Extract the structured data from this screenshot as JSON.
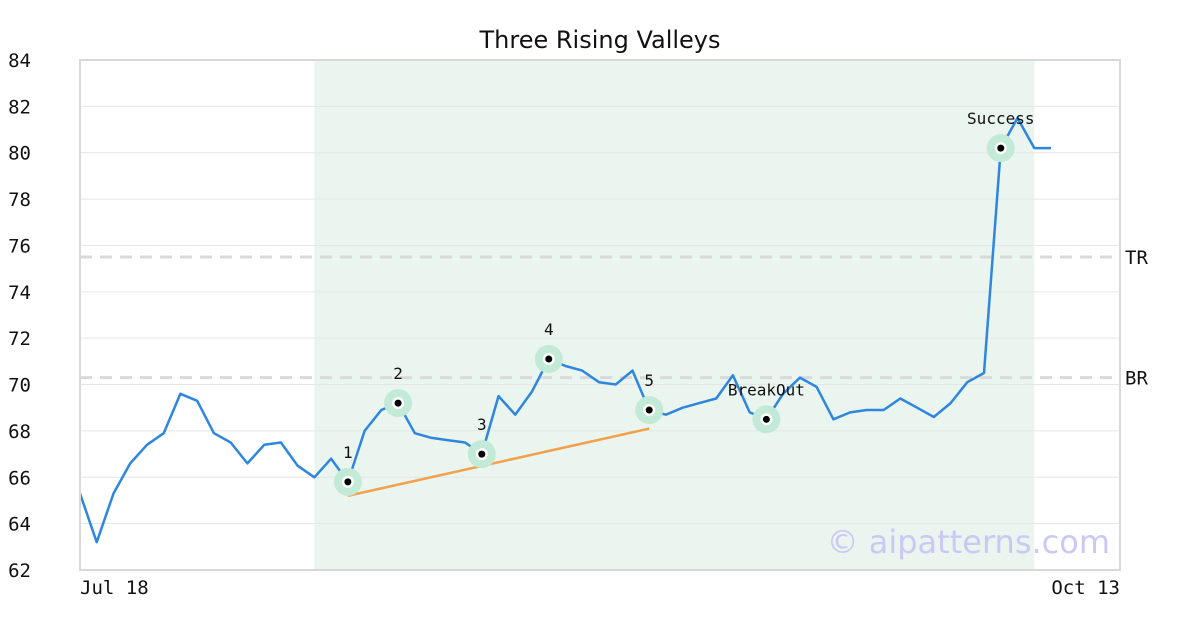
{
  "chart_data": {
    "type": "line",
    "title": "Three Rising Valleys",
    "x_tick_labels": [
      "Jul 18",
      "Oct 13"
    ],
    "y_ticks": [
      62,
      64,
      66,
      68,
      70,
      72,
      74,
      76,
      78,
      80,
      82,
      84
    ],
    "ylim": [
      62,
      84
    ],
    "grid": "horizontal",
    "series": [
      {
        "color": "#2e86de",
        "values": [
          65.3,
          63.2,
          65.3,
          66.6,
          67.4,
          67.9,
          69.6,
          69.3,
          67.9,
          67.5,
          66.6,
          67.4,
          67.5,
          66.5,
          66.0,
          66.8,
          65.8,
          68.0,
          68.9,
          69.2,
          67.9,
          67.7,
          67.6,
          67.5,
          67.0,
          69.5,
          68.7,
          69.7,
          71.1,
          70.8,
          70.6,
          70.1,
          70.0,
          70.6,
          68.9,
          68.7,
          69.0,
          69.2,
          69.4,
          70.4,
          68.8,
          68.5,
          69.6,
          70.3,
          69.9,
          68.5,
          68.8,
          68.9,
          68.9,
          69.4,
          69.0,
          68.6,
          69.2,
          70.1,
          70.5,
          80.2,
          81.5,
          80.2,
          80.2
        ]
      }
    ],
    "levels": [
      {
        "label": "TR",
        "value": 75.5
      },
      {
        "label": "BR",
        "value": 70.3
      }
    ],
    "pattern_points": [
      {
        "label": "1",
        "index": 16,
        "value": 65.8
      },
      {
        "label": "2",
        "index": 19,
        "value": 69.2
      },
      {
        "label": "3",
        "index": 24,
        "value": 67.0
      },
      {
        "label": "4",
        "index": 28,
        "value": 71.1
      },
      {
        "label": "5",
        "index": 34,
        "value": 68.9
      },
      {
        "label": "BreakOut",
        "index": 41,
        "value": 68.5
      },
      {
        "label": "Success",
        "index": 55,
        "value": 80.2
      }
    ],
    "trendline": {
      "start_index": 16,
      "start_value": 65.2,
      "end_index": 34,
      "end_value": 68.1,
      "color": "#f5a04a"
    },
    "pattern_range": {
      "start_index": 14,
      "end_index": 57,
      "color": "#eaf5f0"
    },
    "watermark": "© aipatterns.com"
  }
}
